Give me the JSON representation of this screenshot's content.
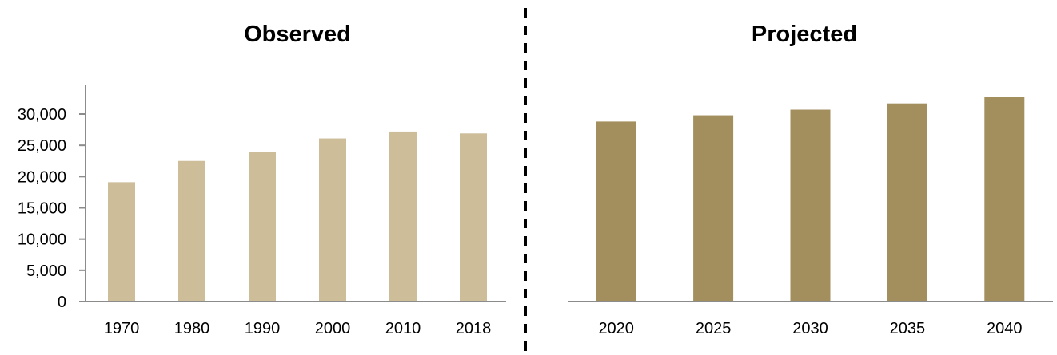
{
  "chart_data": [
    {
      "type": "bar",
      "title": "Observed",
      "categories": [
        "1970",
        "1980",
        "1990",
        "2000",
        "2010",
        "2018"
      ],
      "values": [
        19100,
        22500,
        24000,
        26100,
        27200,
        26900
      ],
      "ylim": [
        0,
        32000
      ],
      "yticks": [
        0,
        5000,
        10000,
        15000,
        20000,
        25000,
        30000
      ],
      "ytick_labels": [
        "0",
        "5,000",
        "10,000",
        "15,000",
        "20,000",
        "25,000",
        "30,000"
      ],
      "color": "#cdbd99",
      "grid": false
    },
    {
      "type": "bar",
      "title": "Projected",
      "categories": [
        "2020",
        "2025",
        "2030",
        "2035",
        "2040"
      ],
      "values": [
        28800,
        29800,
        30700,
        31700,
        32800
      ],
      "ylim": [
        0,
        32000
      ],
      "color": "#a38f5e",
      "grid": false
    }
  ]
}
